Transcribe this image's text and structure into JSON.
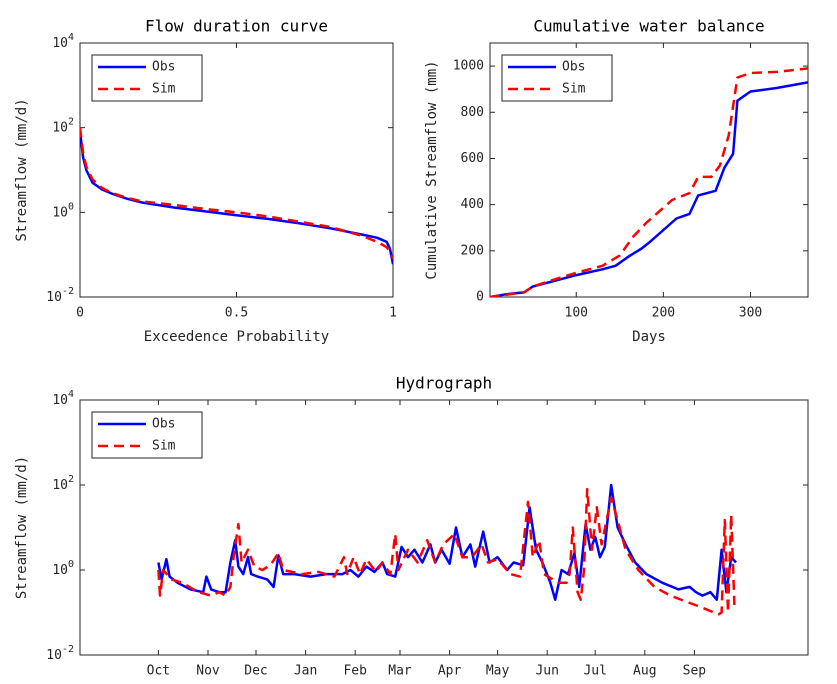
{
  "chart_data": [
    {
      "type": "line",
      "title": "Flow duration curve",
      "xlabel": "Exceedence Probability",
      "ylabel": "Streamflow (mm/d)",
      "xlim": [
        0,
        1
      ],
      "xticks": [
        0,
        0.5,
        1
      ],
      "ylim": [
        0.01,
        10000
      ],
      "ylog": true,
      "yticks": [
        {
          "value": 0.01,
          "label": "10^-2"
        },
        {
          "value": 1,
          "label": "10^0"
        },
        {
          "value": 100,
          "label": "10^2"
        },
        {
          "value": 10000,
          "label": "10^4"
        }
      ],
      "legend": "upper left",
      "series": [
        {
          "name": "Obs",
          "color": "#0000ff",
          "linestyle": "solid",
          "x": [
            0,
            0.005,
            0.01,
            0.02,
            0.04,
            0.07,
            0.1,
            0.15,
            0.2,
            0.3,
            0.4,
            0.5,
            0.6,
            0.7,
            0.8,
            0.9,
            0.95,
            0.98,
            0.99,
            1
          ],
          "values": [
            80,
            40,
            20,
            10,
            5,
            3.5,
            2.8,
            2.1,
            1.7,
            1.3,
            1.05,
            0.85,
            0.7,
            0.55,
            0.42,
            0.3,
            0.25,
            0.2,
            0.14,
            0.06
          ]
        },
        {
          "name": "Sim",
          "color": "#ff0000",
          "linestyle": "dashed",
          "x": [
            0,
            0.005,
            0.01,
            0.02,
            0.04,
            0.07,
            0.1,
            0.15,
            0.2,
            0.3,
            0.4,
            0.5,
            0.6,
            0.7,
            0.8,
            0.9,
            0.95,
            0.98,
            0.99,
            1
          ],
          "values": [
            100,
            50,
            25,
            12,
            6,
            3.8,
            2.9,
            2.2,
            1.8,
            1.5,
            1.2,
            1.0,
            0.8,
            0.6,
            0.45,
            0.28,
            0.2,
            0.15,
            0.12,
            0.08
          ]
        }
      ]
    },
    {
      "type": "line",
      "title": "Cumulative water balance",
      "xlabel": "Days",
      "ylabel": "Cumulative Streamflow (mm)",
      "xlim": [
        1,
        366
      ],
      "xticks": [
        100,
        200,
        300
      ],
      "ylim": [
        0,
        1100
      ],
      "yticks": [
        0,
        200,
        400,
        600,
        800,
        1000
      ],
      "legend": "upper left",
      "series": [
        {
          "name": "Obs",
          "color": "#0000ff",
          "linestyle": "solid",
          "x": [
            1,
            20,
            40,
            50,
            70,
            100,
            130,
            145,
            160,
            175,
            185,
            200,
            215,
            230,
            240,
            260,
            270,
            280,
            285,
            300,
            330,
            366
          ],
          "values": [
            0,
            12,
            20,
            45,
            65,
            95,
            120,
            135,
            175,
            210,
            240,
            290,
            340,
            360,
            440,
            460,
            560,
            620,
            850,
            890,
            905,
            930
          ]
        },
        {
          "name": "Sim",
          "color": "#ff0000",
          "linestyle": "dashed",
          "x": [
            1,
            20,
            40,
            50,
            70,
            100,
            130,
            150,
            165,
            180,
            195,
            210,
            230,
            240,
            255,
            265,
            275,
            285,
            300,
            330,
            366
          ],
          "values": [
            0,
            10,
            20,
            45,
            70,
            105,
            135,
            180,
            260,
            320,
            370,
            420,
            450,
            520,
            520,
            570,
            700,
            950,
            970,
            975,
            990
          ]
        }
      ]
    },
    {
      "type": "line",
      "title": "Hydrograph",
      "ylabel": "Streamflow (mm/d)",
      "xlim": [
        -49,
        406
      ],
      "xticks": [
        {
          "value": 0,
          "label": "Oct"
        },
        {
          "value": 31,
          "label": "Nov"
        },
        {
          "value": 61,
          "label": "Dec"
        },
        {
          "value": 92,
          "label": "Jan"
        },
        {
          "value": 123,
          "label": "Feb"
        },
        {
          "value": 151,
          "label": "Mar"
        },
        {
          "value": 182,
          "label": "Apr"
        },
        {
          "value": 212,
          "label": "May"
        },
        {
          "value": 243,
          "label": "Jun"
        },
        {
          "value": 273,
          "label": "Jul"
        },
        {
          "value": 304,
          "label": "Aug"
        },
        {
          "value": 335,
          "label": "Sep"
        }
      ],
      "ylim": [
        0.01,
        10000
      ],
      "ylog": true,
      "yticks": [
        {
          "value": 0.01,
          "label": "10^-2"
        },
        {
          "value": 1,
          "label": "10^0"
        },
        {
          "value": 100,
          "label": "10^2"
        },
        {
          "value": 10000,
          "label": "10^4"
        }
      ],
      "legend": "upper left",
      "series": [
        {
          "name": "Obs",
          "color": "#0000ff",
          "linestyle": "solid",
          "x": [
            0,
            2,
            5,
            7,
            12,
            20,
            28,
            30,
            33,
            38,
            42,
            45,
            48,
            50,
            53,
            56,
            58,
            62,
            68,
            72,
            75,
            78,
            85,
            95,
            105,
            115,
            120,
            125,
            130,
            135,
            140,
            143,
            148,
            152,
            156,
            160,
            165,
            170,
            173,
            177,
            182,
            186,
            190,
            195,
            198,
            203,
            207,
            212,
            218,
            222,
            228,
            232,
            236,
            240,
            245,
            248,
            252,
            256,
            260,
            263,
            267,
            270,
            273,
            276,
            279,
            283,
            287,
            292,
            298,
            305,
            315,
            325,
            332,
            336,
            340,
            345,
            349,
            352,
            355,
            358,
            361
          ],
          "values": [
            1.5,
            0.6,
            1.8,
            0.7,
            0.5,
            0.35,
            0.3,
            0.7,
            0.35,
            0.3,
            0.3,
            1.5,
            5,
            1.2,
            0.8,
            2,
            0.8,
            0.7,
            0.6,
            0.4,
            2.2,
            0.8,
            0.8,
            0.7,
            0.8,
            0.8,
            1,
            0.7,
            1.2,
            0.9,
            1.5,
            0.8,
            0.7,
            3.5,
            2,
            3,
            1.5,
            4,
            1.5,
            3,
            1.4,
            10,
            2,
            4,
            1.2,
            8,
            1.5,
            2,
            1,
            1.5,
            1.3,
            30,
            3,
            1.5,
            0.5,
            0.2,
            1,
            0.8,
            2.5,
            0.4,
            12,
            3,
            6,
            2,
            3.5,
            100,
            10,
            4,
            1.5,
            0.8,
            0.5,
            0.35,
            0.4,
            0.3,
            0.25,
            0.3,
            0.2,
            3,
            0.3,
            2,
            1.5
          ]
        },
        {
          "name": "Sim",
          "color": "#ff0000",
          "linestyle": "dashed",
          "x": [
            0,
            1,
            3,
            8,
            15,
            25,
            33,
            38,
            42,
            45,
            47,
            50,
            52,
            56,
            60,
            65,
            70,
            75,
            78,
            90,
            100,
            110,
            116,
            118,
            122,
            126,
            130,
            136,
            140,
            145,
            148,
            150,
            156,
            162,
            168,
            173,
            178,
            185,
            190,
            196,
            202,
            206,
            212,
            220,
            226,
            231,
            234,
            238,
            241,
            250,
            255,
            257,
            259,
            262,
            264,
            266,
            268,
            271,
            274,
            277,
            283,
            287,
            292,
            300,
            310,
            320,
            330,
            340,
            350,
            352,
            354,
            356,
            358,
            360
          ],
          "values": [
            1,
            0.25,
            1,
            0.6,
            0.5,
            0.3,
            0.25,
            0.3,
            0.25,
            0.4,
            2,
            12,
            1.5,
            3,
            1.2,
            1,
            1.3,
            2.5,
            1,
            0.8,
            0.9,
            0.7,
            2,
            0.8,
            2,
            0.8,
            1.8,
            0.9,
            1.5,
            0.8,
            7,
            1,
            3,
            1.5,
            5,
            1.5,
            4,
            7,
            2,
            2,
            4,
            1.5,
            1.8,
            0.8,
            0.7,
            40,
            2,
            5,
            0.8,
            0.5,
            0.5,
            0.8,
            10,
            0.3,
            0.2,
            1,
            80,
            3,
            30,
            4,
            50,
            15,
            3,
            1,
            0.4,
            0.25,
            0.18,
            0.13,
            0.09,
            0.1,
            15,
            0.1,
            20,
            0.15
          ]
        }
      ]
    }
  ]
}
